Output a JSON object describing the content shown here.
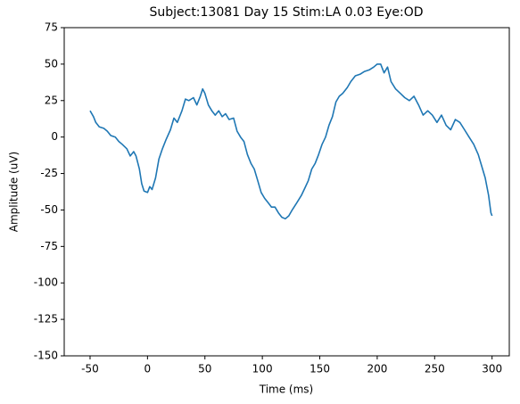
{
  "chart_data": {
    "type": "line",
    "title": "Subject:13081 Day 15 Stim:LA 0.03 Eye:OD",
    "x_label": "Time (ms)",
    "y_label": "Amplitude (uV)",
    "xlim": [
      -72.5,
      315
    ],
    "ylim": [
      -150,
      75
    ],
    "xticks": [
      -50,
      0,
      50,
      100,
      150,
      200,
      250,
      300
    ],
    "yticks": [
      -150,
      -125,
      -100,
      -75,
      -50,
      -25,
      0,
      25,
      50,
      75
    ],
    "series": [
      {
        "color": "#1f77b4",
        "x": [
          -50,
          -47,
          -45,
          -42,
          -38,
          -35,
          -32,
          -28,
          -25,
          -22,
          -18,
          -15,
          -12,
          -10,
          -7,
          -5,
          -3,
          0,
          2,
          4,
          7,
          10,
          13,
          16,
          20,
          23,
          26,
          30,
          33,
          36,
          40,
          43,
          46,
          48,
          50,
          53,
          56,
          59,
          62,
          65,
          68,
          71,
          75,
          78,
          81,
          84,
          87,
          90,
          93,
          96,
          99,
          102,
          105,
          108,
          111,
          114,
          117,
          120,
          123,
          126,
          130,
          134,
          137,
          140,
          143,
          146,
          149,
          152,
          155,
          158,
          161,
          164,
          167,
          170,
          174,
          177,
          181,
          185,
          189,
          193,
          197,
          200,
          203,
          206,
          209,
          212,
          216,
          220,
          224,
          228,
          232,
          236,
          240,
          244,
          248,
          252,
          256,
          260,
          264,
          268,
          272,
          276,
          280,
          284,
          288,
          291,
          294,
          297,
          299,
          300
        ],
        "values": [
          18,
          14,
          10,
          7,
          6,
          4,
          1,
          0,
          -3,
          -5,
          -8,
          -13,
          -10,
          -13,
          -22,
          -32,
          -37,
          -38,
          -34,
          -36,
          -28,
          -15,
          -8,
          -2,
          5,
          13,
          10,
          18,
          26,
          25,
          27,
          22,
          28,
          33,
          30,
          22,
          18,
          15,
          18,
          14,
          16,
          12,
          13,
          4,
          0,
          -3,
          -12,
          -18,
          -22,
          -30,
          -38,
          -42,
          -45,
          -48,
          -48,
          -52,
          -55,
          -56,
          -54,
          -50,
          -45,
          -40,
          -35,
          -30,
          -22,
          -18,
          -12,
          -5,
          0,
          8,
          14,
          24,
          28,
          30,
          34,
          38,
          42,
          43,
          45,
          46,
          48,
          50,
          50,
          44,
          48,
          38,
          33,
          30,
          27,
          25,
          28,
          22,
          15,
          18,
          15,
          10,
          15,
          8,
          5,
          12,
          10,
          5,
          0,
          -5,
          -12,
          -20,
          -28,
          -40,
          -52,
          -54
        ]
      }
    ]
  }
}
